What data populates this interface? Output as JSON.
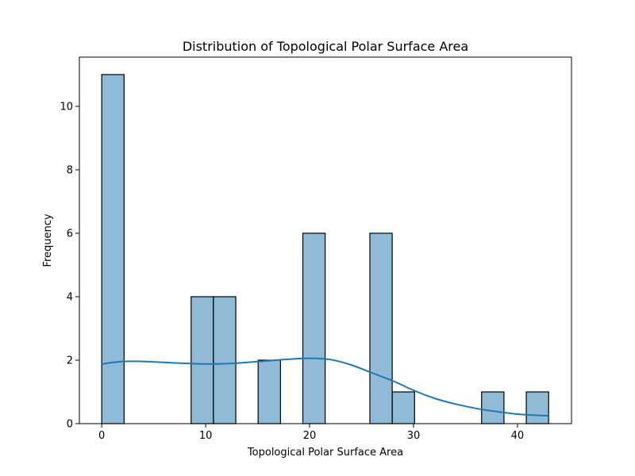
{
  "chart_data": {
    "type": "bar",
    "title": "Distribution of Topological Polar Surface Area",
    "xlabel": "Topological Polar Surface Area",
    "ylabel": "Frequency",
    "xlim": [
      -2.15,
      45.2
    ],
    "ylim": [
      0,
      11.55
    ],
    "x_ticks": [
      0,
      10,
      20,
      30,
      40
    ],
    "y_ticks": [
      0,
      2,
      4,
      6,
      8,
      10
    ],
    "bins": [
      {
        "start": 0.0,
        "end": 2.15,
        "count": 11
      },
      {
        "start": 2.15,
        "end": 4.3,
        "count": 0
      },
      {
        "start": 4.3,
        "end": 6.45,
        "count": 0
      },
      {
        "start": 6.45,
        "end": 8.6,
        "count": 0
      },
      {
        "start": 8.6,
        "end": 10.75,
        "count": 4
      },
      {
        "start": 10.75,
        "end": 12.9,
        "count": 4
      },
      {
        "start": 12.9,
        "end": 15.05,
        "count": 0
      },
      {
        "start": 15.05,
        "end": 17.2,
        "count": 2
      },
      {
        "start": 17.2,
        "end": 19.35,
        "count": 0
      },
      {
        "start": 19.35,
        "end": 21.5,
        "count": 6
      },
      {
        "start": 21.5,
        "end": 23.65,
        "count": 0
      },
      {
        "start": 23.65,
        "end": 25.8,
        "count": 0
      },
      {
        "start": 25.8,
        "end": 27.95,
        "count": 6
      },
      {
        "start": 27.95,
        "end": 30.1,
        "count": 1
      },
      {
        "start": 30.1,
        "end": 32.25,
        "count": 0
      },
      {
        "start": 32.25,
        "end": 34.4,
        "count": 0
      },
      {
        "start": 34.4,
        "end": 36.55,
        "count": 0
      },
      {
        "start": 36.55,
        "end": 38.7,
        "count": 1
      },
      {
        "start": 38.7,
        "end": 40.85,
        "count": 0
      },
      {
        "start": 40.85,
        "end": 43.0,
        "count": 1
      }
    ],
    "kde": {
      "x": [
        0,
        2,
        4,
        6,
        8,
        10,
        12,
        14,
        16,
        18,
        20,
        22,
        24,
        26,
        28,
        30,
        32,
        34,
        36,
        38,
        40,
        42,
        43
      ],
      "y": [
        1.88,
        1.96,
        1.96,
        1.93,
        1.9,
        1.88,
        1.89,
        1.93,
        1.98,
        2.03,
        2.06,
        2.02,
        1.85,
        1.6,
        1.35,
        1.05,
        0.8,
        0.62,
        0.48,
        0.38,
        0.3,
        0.26,
        0.25
      ]
    },
    "bar_color": "#1f77b4",
    "bar_alpha": 0.5,
    "bar_edge_color": "#000000",
    "kde_color": "#1f77b4",
    "grid": false
  }
}
